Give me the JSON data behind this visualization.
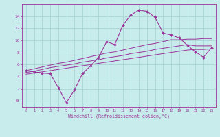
{
  "xlabel": "Windchill (Refroidissement éolien,°C)",
  "bg_color": "#c8ecec",
  "grid_color": "#aad4d4",
  "line_color": "#993399",
  "x_data": [
    0,
    1,
    2,
    3,
    4,
    5,
    6,
    7,
    8,
    9,
    10,
    11,
    12,
    13,
    14,
    15,
    16,
    17,
    18,
    19,
    20,
    21,
    22,
    23
  ],
  "main_line": [
    5.0,
    4.8,
    4.6,
    4.5,
    2.2,
    -0.3,
    1.8,
    4.5,
    5.8,
    7.2,
    9.8,
    9.3,
    12.5,
    14.2,
    15.0,
    14.8,
    13.8,
    11.2,
    10.9,
    10.4,
    9.2,
    8.1,
    7.2,
    8.8
  ],
  "upper_line": [
    5.0,
    5.3,
    5.6,
    5.9,
    6.2,
    6.4,
    6.7,
    7.0,
    7.3,
    7.6,
    7.9,
    8.1,
    8.4,
    8.7,
    9.0,
    9.3,
    9.5,
    9.8,
    10.1,
    10.1,
    10.2,
    10.2,
    10.3,
    10.3
  ],
  "middle_line": [
    4.7,
    4.9,
    5.2,
    5.5,
    5.7,
    5.9,
    6.1,
    6.4,
    6.6,
    6.8,
    7.1,
    7.3,
    7.5,
    7.8,
    8.0,
    8.2,
    8.5,
    8.7,
    8.9,
    9.1,
    9.3,
    9.1,
    9.1,
    9.1
  ],
  "lower_line": [
    4.4,
    4.6,
    4.8,
    5.0,
    5.2,
    5.4,
    5.6,
    5.8,
    6.0,
    6.2,
    6.4,
    6.6,
    6.8,
    7.0,
    7.2,
    7.4,
    7.6,
    7.8,
    8.0,
    8.2,
    8.4,
    8.5,
    8.5,
    8.6
  ],
  "ylim": [
    -1,
    16
  ],
  "xlim": [
    -0.5,
    23.5
  ],
  "yticks": [
    0,
    2,
    4,
    6,
    8,
    10,
    12,
    14
  ],
  "ytick_labels": [
    "-0",
    "2",
    "4",
    "6",
    "8",
    "10",
    "12",
    "14"
  ],
  "xticks": [
    0,
    1,
    2,
    3,
    4,
    5,
    6,
    7,
    8,
    9,
    10,
    11,
    12,
    13,
    14,
    15,
    16,
    17,
    18,
    19,
    20,
    21,
    22,
    23
  ]
}
